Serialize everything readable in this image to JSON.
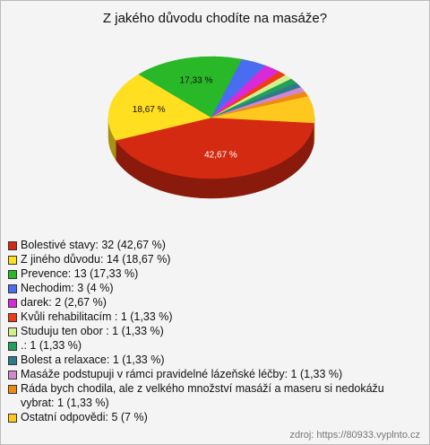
{
  "chart_data": {
    "type": "pie3d",
    "title": "Z jakého důvodu chodíte na masáže?",
    "categories": [
      "Bolestivé stavy: 32 (42,67 %)",
      "Z jiného důvodu: 14 (18,67 %)",
      "Prevence: 13 (17,33 %)",
      "Nechodim: 3 (4 %)",
      "darek: 2 (2,67 %)",
      "Kvůli rehabilitacím : 1 (1,33 %)",
      "Studuju ten obor : 1 (1,33 %)",
      ".: 1 (1,33 %)",
      "Bolest a relaxace: 1 (1,33 %)",
      "Masáže podstupuji v rámci pravidelné lázeňské léčby: 1 (1,33 %)",
      "Ráda bych chodila, ale z velkého množství masáží a maseru si nedokážu vybrat: 1 (1,33 %)",
      "Ostatní odpovědi: 5 (7 %)"
    ],
    "values": [
      42.67,
      18.67,
      17.33,
      4,
      2.67,
      1.33,
      1.33,
      1.33,
      1.33,
      1.33,
      1.33,
      7
    ],
    "value_labels": [
      "42,67 %",
      "18,67 %",
      "17,33 %",
      null,
      null,
      null,
      null,
      null,
      null,
      null,
      null,
      null
    ],
    "colors": [
      "#d42a12",
      "#ffdf20",
      "#28b828",
      "#4a6cf0",
      "#d82ad8",
      "#f03c14",
      "#d2f08c",
      "#22a05a",
      "#2f7a8a",
      "#d088d0",
      "#ee8a10",
      "#ffc81e"
    ],
    "source": "zdroj: https://80933.vyplnto.cz"
  }
}
